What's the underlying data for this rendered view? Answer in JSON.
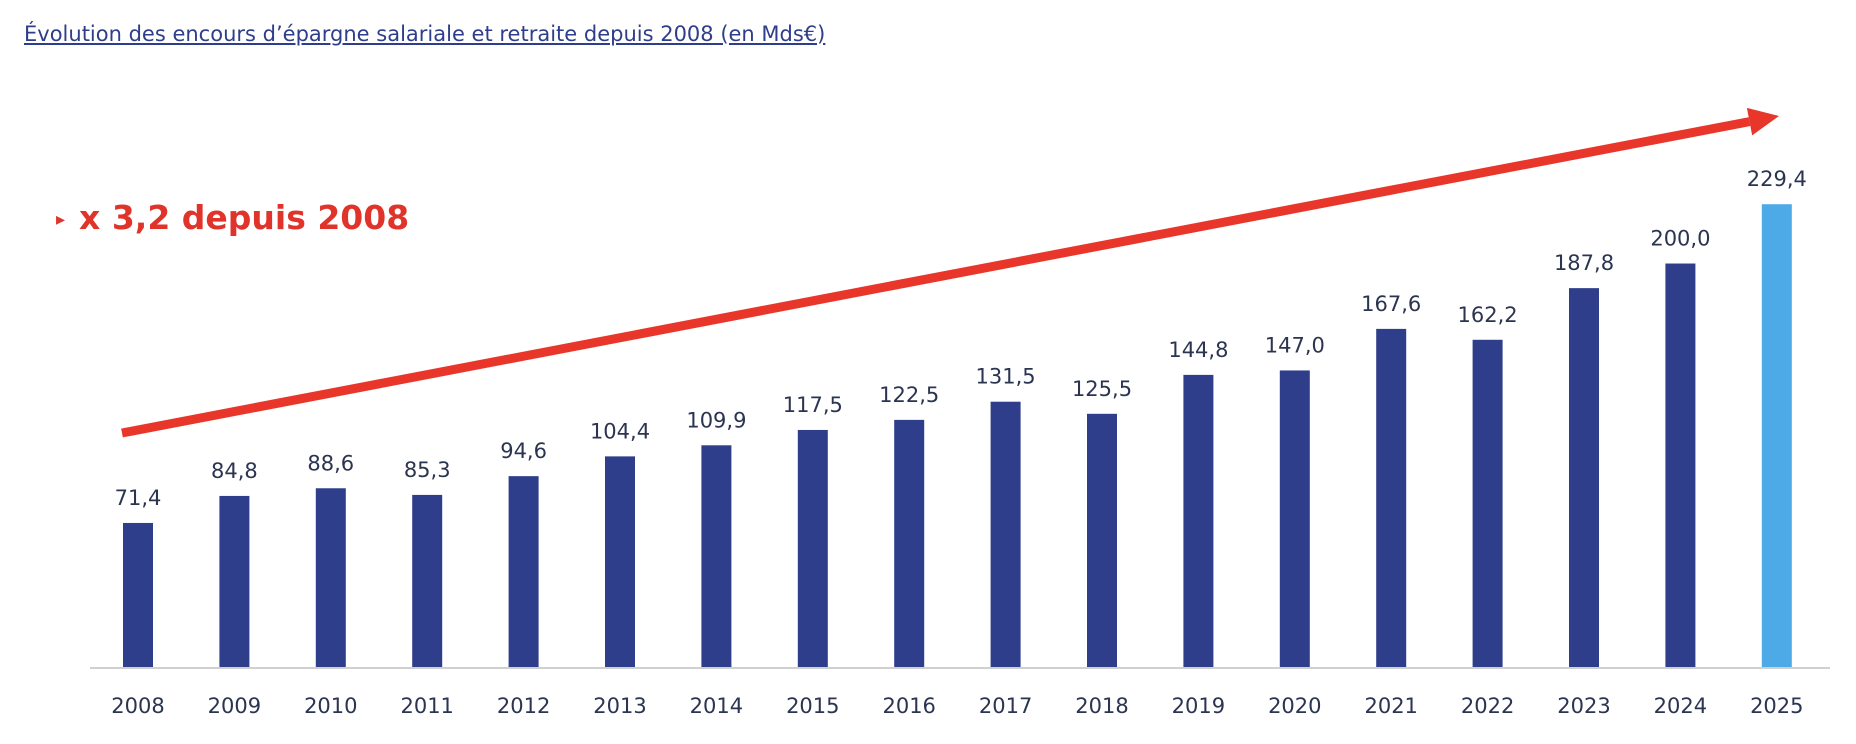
{
  "title": "Évolution des encours d’épargne salariale et retraite depuis 2008 (en Mds€)",
  "annotation": {
    "marker": "▸",
    "text": "x 3,2 depuis 2008",
    "color": "#e0332a"
  },
  "colors": {
    "bar": "#2e3e8a",
    "highlight": "#4eaae6",
    "arrow": "#e8362a",
    "text": "#2b3450",
    "axis": "#d0d0d0"
  },
  "chart_data": {
    "type": "bar",
    "title": "Évolution des encours d’épargne salariale et retraite depuis 2008 (en Mds€)",
    "xlabel": "",
    "ylabel": "",
    "categories": [
      "2008",
      "2009",
      "2010",
      "2011",
      "2012",
      "2013",
      "2014",
      "2015",
      "2016",
      "2017",
      "2018",
      "2019",
      "2020",
      "2021",
      "2022",
      "2023",
      "2024",
      "2025"
    ],
    "values": [
      71.4,
      84.8,
      88.6,
      85.3,
      94.6,
      104.4,
      109.9,
      117.5,
      122.5,
      131.5,
      125.5,
      144.8,
      147.0,
      167.6,
      162.2,
      187.8,
      200.0,
      229.4
    ],
    "data_labels": [
      "71,4",
      "84,8",
      "88,6",
      "85,3",
      "94,6",
      "104,4",
      "109,9",
      "117,5",
      "122,5",
      "131,5",
      "125,5",
      "144,8",
      "147,0",
      "167,6",
      "162,2",
      "187,8",
      "200,0",
      "229,4"
    ],
    "highlighted_category": "2025",
    "ylim": [
      0,
      230
    ],
    "grid": false,
    "legend": "none",
    "trend_arrow": true
  }
}
